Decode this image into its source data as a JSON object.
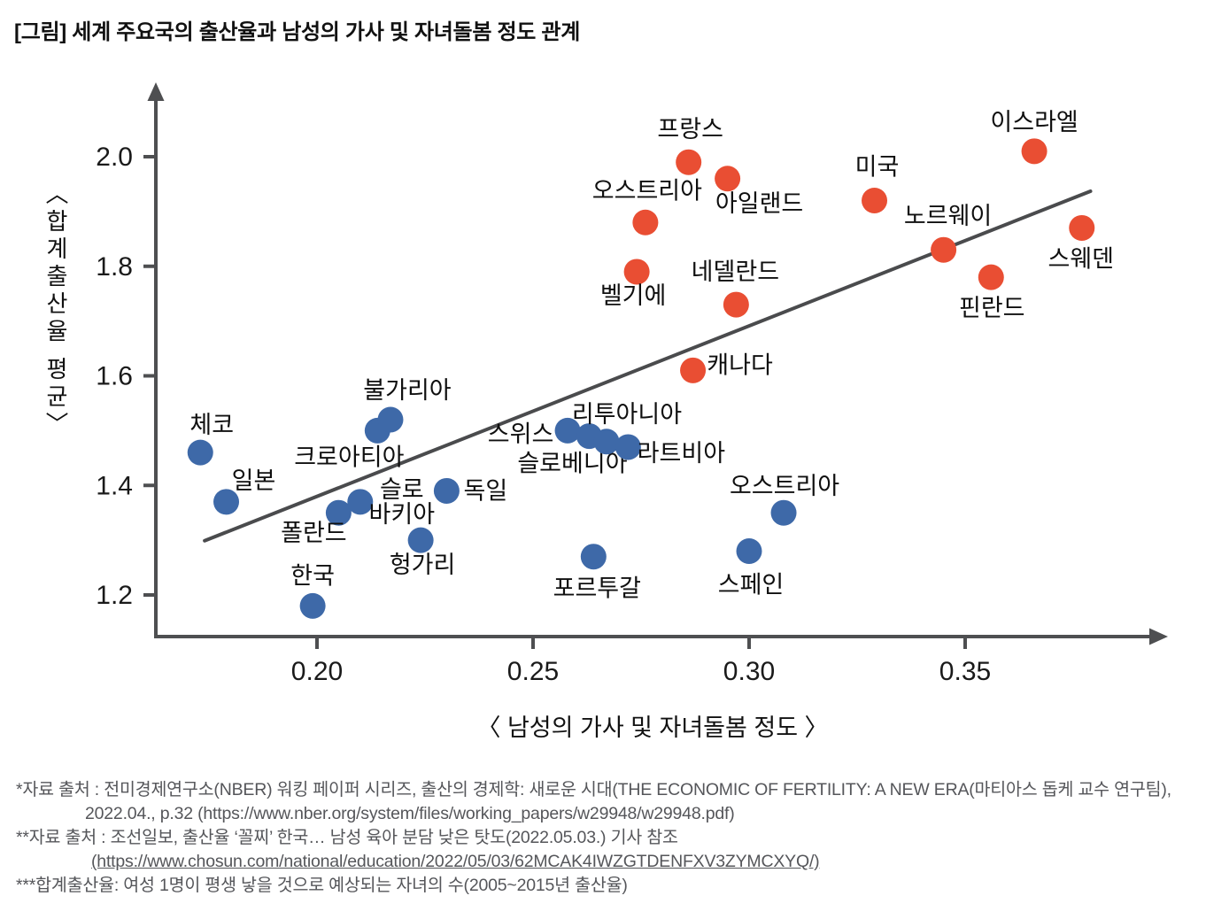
{
  "page": {
    "title": "[그림] 세계 주요국의 출산율과 남성의 가사 및 자녀돌봄 정도 관계"
  },
  "chart_data": {
    "type": "scatter",
    "xlabel": "〈 남성의 가사 및 자녀돌봄 정도 〉",
    "ylabel": "〈합계출산율 평균〉",
    "x_ticks": [
      {
        "value": 0.2,
        "label": "0.20"
      },
      {
        "value": 0.25,
        "label": "0.25"
      },
      {
        "value": 0.3,
        "label": "0.30"
      },
      {
        "value": 0.35,
        "label": "0.35"
      }
    ],
    "y_ticks": [
      {
        "value": 1.2,
        "label": "1.2"
      },
      {
        "value": 1.4,
        "label": "1.4"
      },
      {
        "value": 1.6,
        "label": "1.6"
      },
      {
        "value": 1.8,
        "label": "1.8"
      },
      {
        "value": 2.0,
        "label": "2.0"
      }
    ],
    "xlim": [
      0.162,
      0.396
    ],
    "ylim": [
      1.06,
      2.13
    ],
    "grid": false,
    "legend": "none",
    "colors": {
      "red_group": "#E94E33",
      "blue_group": "#3E69A8",
      "axis": "#4E4F51",
      "trend": "#4A4B4D",
      "label_text": "#0f0f0f"
    },
    "trend_line": {
      "x1": 0.174,
      "y1": 1.299,
      "x2": 0.379,
      "y2": 1.937
    },
    "series": [
      {
        "name": "red-group",
        "color": "#E94E33",
        "points": [
          {
            "id": "austria",
            "label": "오스트리아",
            "x": 0.276,
            "y": 1.88,
            "label_dx": 2,
            "label_dy": -36
          },
          {
            "id": "france",
            "label": "프랑스",
            "x": 0.286,
            "y": 1.99,
            "label_dx": 2,
            "label_dy": -37
          },
          {
            "id": "ireland",
            "label": "아일랜드",
            "x": 0.295,
            "y": 1.96,
            "label_dx": 36,
            "label_dy": 28
          },
          {
            "id": "belgium",
            "label": "벨기에",
            "x": 0.274,
            "y": 1.79,
            "label_dx": -4,
            "label_dy": 27
          },
          {
            "id": "netherlands",
            "label": "네델란드",
            "x": 0.297,
            "y": 1.73,
            "label_dx": -1,
            "label_dy": -37
          },
          {
            "id": "canada",
            "label": "캐나다",
            "x": 0.287,
            "y": 1.61,
            "label_dx": 53,
            "label_dy": -6
          },
          {
            "id": "usa",
            "label": "미국",
            "x": 0.329,
            "y": 1.92,
            "label_dx": 3,
            "label_dy": -38
          },
          {
            "id": "norway",
            "label": "노르웨이",
            "x": 0.345,
            "y": 1.83,
            "label_dx": 5,
            "label_dy": -38
          },
          {
            "id": "israel",
            "label": "이스라엘",
            "x": 0.366,
            "y": 2.01,
            "label_dx": 0,
            "label_dy": -33
          },
          {
            "id": "finland",
            "label": "핀란드",
            "x": 0.356,
            "y": 1.78,
            "label_dx": 1,
            "label_dy": 35
          },
          {
            "id": "sweden",
            "label": "스웨덴",
            "x": 0.377,
            "y": 1.87,
            "label_dx": -1,
            "label_dy": 35
          }
        ]
      },
      {
        "name": "blue-group",
        "color": "#3E69A8",
        "points": [
          {
            "id": "czechia",
            "label": "체코",
            "x": 0.173,
            "y": 1.46,
            "label_dx": 13,
            "label_dy": -31
          },
          {
            "id": "japan",
            "label": "일본",
            "x": 0.179,
            "y": 1.37,
            "label_dx": 31,
            "label_dy": -24
          },
          {
            "id": "korea",
            "label": "한국",
            "x": 0.199,
            "y": 1.18,
            "label_dx": 0,
            "label_dy": -34
          },
          {
            "id": "poland",
            "label": "폴란드",
            "x": 0.205,
            "y": 1.35,
            "label_dx": -28,
            "label_dy": 23
          },
          {
            "id": "slovakia",
            "label": "슬로바키아",
            "label_lines": [
              "슬로",
              "바키아"
            ],
            "x": 0.21,
            "y": 1.37,
            "label_dx": 47,
            "label_dy": -14,
            "line_height": 28
          },
          {
            "id": "croatia",
            "label": "크로아티아",
            "x": 0.214,
            "y": 1.5,
            "label_dx": -32,
            "label_dy": 30
          },
          {
            "id": "bulgaria",
            "label": "불가리아",
            "x": 0.217,
            "y": 1.52,
            "label_dx": 19,
            "label_dy": -33
          },
          {
            "id": "hungary",
            "label": "헝가리",
            "x": 0.224,
            "y": 1.3,
            "label_dx": 2,
            "label_dy": 28
          },
          {
            "id": "germany",
            "label": "독일",
            "x": 0.23,
            "y": 1.39,
            "label_dx": 44,
            "label_dy": 0
          },
          {
            "id": "switzerland",
            "label": "스위스",
            "x": 0.258,
            "y": 1.5,
            "label_dx": -53,
            "label_dy": 4
          },
          {
            "id": "slovenia",
            "label": "슬로베니아",
            "x": 0.263,
            "y": 1.49,
            "label_dx": -19,
            "label_dy": 31
          },
          {
            "id": "lithuania",
            "label": "리투아니아",
            "x": 0.267,
            "y": 1.48,
            "label_dx": 23,
            "label_dy": -31
          },
          {
            "id": "latvia",
            "label": "라트비아",
            "x": 0.272,
            "y": 1.47,
            "label_dx": 60,
            "label_dy": 7
          },
          {
            "id": "portugal",
            "label": "포르투갈",
            "x": 0.264,
            "y": 1.27,
            "label_dx": 4,
            "label_dy": 36
          },
          {
            "id": "spain",
            "label": "스페인",
            "x": 0.3,
            "y": 1.28,
            "label_dx": 2,
            "label_dy": 38
          },
          {
            "id": "austria-blue",
            "label": "오스트리아",
            "x": 0.308,
            "y": 1.35,
            "label_dx": 1,
            "label_dy": -30
          }
        ]
      }
    ]
  },
  "footnotes": [
    {
      "text": "*자료 출처 : 전미경제연구소(NBER) 워킹 페이퍼 시리즈, 출산의 경제학: 새로운 시대(THE ECONOMIC OF FERTILITY: A NEW ERA(마티아스 돕케 교수 연구팀),",
      "indent": 0,
      "underline": false
    },
    {
      "text": "2022.04., p.32 (https://www.nber.org/system/files/working_papers/w29948/w29948.pdf)",
      "indent": 1,
      "underline": false
    },
    {
      "text": "**자료 출처 : 조선일보, 출산율 ‘꼴찌’ 한국… 남성 육아 분담 낮은 탓도(2022.05.03.) 기사 참조",
      "indent": 0,
      "underline": false
    },
    {
      "text": "(https://www.chosun.com/national/education/2022/05/03/62MCAK4IWZGTDENFXV3ZYMCXYQ/)",
      "indent": 2,
      "underline": true
    },
    {
      "text": "***합계출산율: 여성 1명이 평생 낳을 것으로 예상되는 자녀의 수(2005~2015년 출산율)",
      "indent": 0,
      "underline": false
    }
  ]
}
